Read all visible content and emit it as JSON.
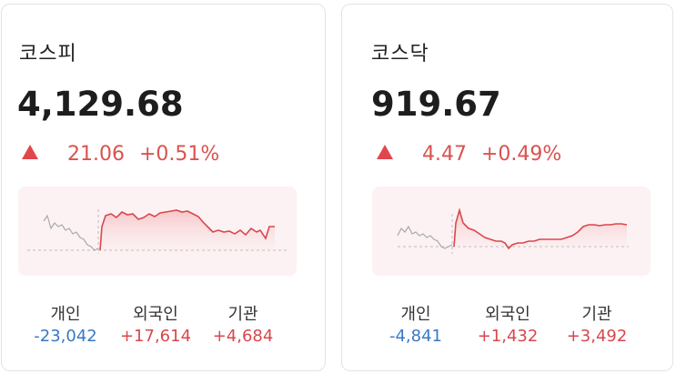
{
  "cards": [
    {
      "title": "코스피",
      "value": "4,129.68",
      "change_points": "21.06",
      "change_percent": "+0.51%",
      "direction": "up",
      "investors": [
        {
          "label": "개인",
          "value": "-23,042",
          "sign": "neg"
        },
        {
          "label": "외국인",
          "value": "+17,614",
          "sign": "pos"
        },
        {
          "label": "기관",
          "value": "+4,684",
          "sign": "pos"
        }
      ]
    },
    {
      "title": "코스닥",
      "value": "919.67",
      "change_points": "4.47",
      "change_percent": "+0.49%",
      "direction": "up",
      "investors": [
        {
          "label": "개인",
          "value": "-4,841",
          "sign": "neg"
        },
        {
          "label": "외국인",
          "value": "+1,432",
          "sign": "pos"
        },
        {
          "label": "기관",
          "value": "+3,492",
          "sign": "pos"
        }
      ]
    }
  ],
  "colors": {
    "up": "#d9474d",
    "down": "#3b78c4",
    "prev_line": "#aaaaaa",
    "chart_bg": "#fcf2f3"
  }
}
